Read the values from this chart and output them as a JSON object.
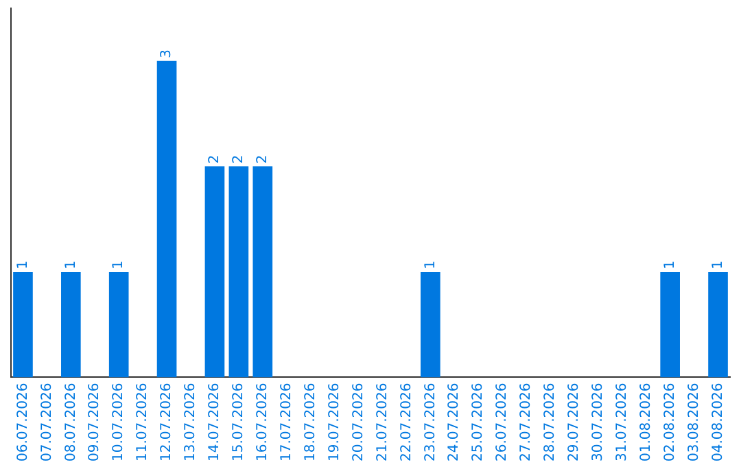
{
  "chart_data": {
    "type": "bar",
    "categories": [
      "06.07.2026",
      "07.07.2026",
      "08.07.2026",
      "09.07.2026",
      "10.07.2026",
      "11.07.2026",
      "12.07.2026",
      "13.07.2026",
      "14.07.2026",
      "15.07.2026",
      "16.07.2026",
      "17.07.2026",
      "18.07.2026",
      "19.07.2026",
      "20.07.2026",
      "21.07.2026",
      "22.07.2026",
      "23.07.2026",
      "24.07.2026",
      "25.07.2026",
      "26.07.2026",
      "27.07.2026",
      "28.07.2026",
      "29.07.2026",
      "30.07.2026",
      "31.07.2026",
      "01.08.2026",
      "02.08.2026",
      "03.08.2026",
      "04.08.2026"
    ],
    "values": [
      1,
      0,
      1,
      0,
      1,
      0,
      3,
      0,
      2,
      2,
      2,
      0,
      0,
      0,
      0,
      0,
      0,
      1,
      0,
      0,
      0,
      0,
      0,
      0,
      0,
      0,
      0,
      1,
      0,
      1
    ],
    "value_labels": [
      "1",
      null,
      "1",
      null,
      "1",
      null,
      "3",
      null,
      "2",
      "2",
      "2",
      null,
      null,
      null,
      null,
      null,
      null,
      "1",
      null,
      null,
      null,
      null,
      null,
      null,
      null,
      null,
      null,
      "1",
      null,
      "1"
    ],
    "color": "#0078e0",
    "grid": false,
    "legend": false,
    "tick_labels": "x"
  }
}
